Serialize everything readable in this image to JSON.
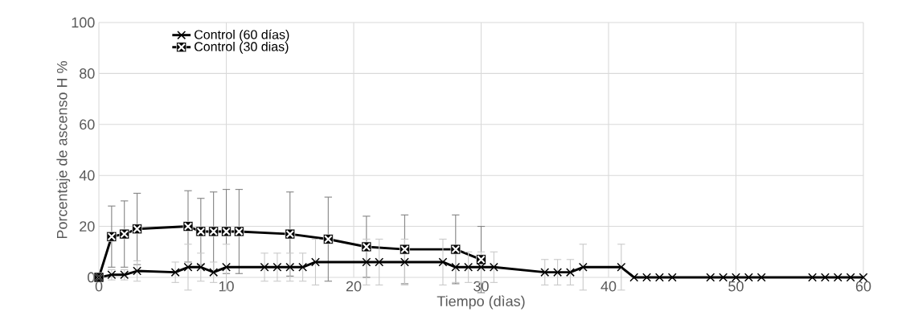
{
  "chart_data": {
    "type": "line",
    "xlabel": "Tiempo (dìas)",
    "ylabel": "Porcentaje de ascenso  H %",
    "xlim": [
      0,
      60
    ],
    "xticks": [
      0,
      10,
      20,
      30,
      40,
      50,
      60
    ],
    "ylim": [
      0,
      100
    ],
    "yticks": [
      0,
      20,
      40,
      60,
      80,
      100
    ],
    "grid": true,
    "legend": "top left",
    "line_style": "solid",
    "series": [
      {
        "name": "Control (60 días)",
        "color": "#000000",
        "marker": "cross",
        "x": [
          0,
          1,
          2,
          3,
          6,
          7,
          8,
          9,
          10,
          13,
          14,
          15,
          16,
          17,
          21,
          22,
          24,
          27,
          28,
          29,
          30,
          31,
          35,
          36,
          37,
          38,
          41,
          42,
          43,
          44,
          45,
          48,
          49,
          50,
          51,
          52,
          56,
          57,
          58,
          59,
          60
        ],
        "values": [
          0,
          1,
          1,
          2.5,
          2,
          4,
          4,
          2,
          4,
          4,
          4,
          4,
          4,
          6,
          6,
          6,
          6,
          6,
          4,
          4,
          4,
          4,
          2,
          2,
          2,
          4,
          4,
          0,
          0,
          0,
          0,
          0,
          0,
          0,
          0,
          0,
          0,
          0,
          0,
          0,
          0
        ],
        "errors": [
          null,
          2,
          2,
          4,
          4,
          9,
          5.5,
          4,
          9,
          5.5,
          5.5,
          5.5,
          5.5,
          9,
          9,
          9,
          9,
          9,
          6,
          6,
          6,
          6,
          5,
          5,
          5,
          9,
          9,
          null,
          null,
          null,
          null,
          null,
          null,
          null,
          null,
          null,
          null,
          null,
          null,
          null,
          null
        ]
      },
      {
        "name": "Control (30 dias)",
        "color": "#000000",
        "marker": "square",
        "x": [
          0,
          1,
          2,
          3,
          7,
          8,
          9,
          10,
          11,
          15,
          18,
          21,
          24,
          28,
          30
        ],
        "values": [
          0,
          16,
          17,
          19,
          20,
          18,
          18,
          18,
          18,
          17,
          15,
          12,
          11,
          11,
          7
        ],
        "errors": [
          null,
          12,
          13,
          14,
          14,
          13,
          15.5,
          16.5,
          16.5,
          16.5,
          16.5,
          12,
          13.5,
          13.5,
          13
        ]
      }
    ]
  }
}
